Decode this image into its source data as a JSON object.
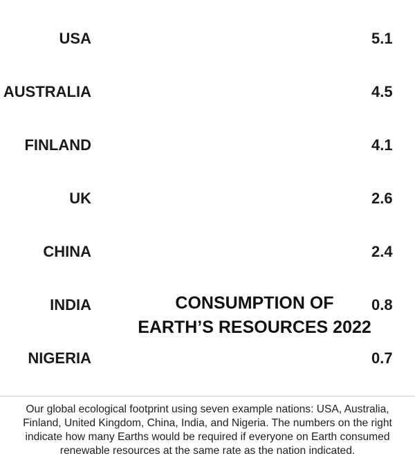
{
  "chart_data": {
    "type": "bar",
    "title_lines": [
      "CONSUMPTION OF",
      "EARTH’S RESOURCES 2022"
    ],
    "categories": [
      "USA",
      "AUSTRALIA",
      "FINLAND",
      "UK",
      "CHINA",
      "INDIA",
      "NIGERIA"
    ],
    "values": [
      5.1,
      4.5,
      4.1,
      2.6,
      2.4,
      0.8,
      0.7
    ],
    "value_labels": [
      "5.1",
      "4.5",
      "4.1",
      "2.6",
      "2.4",
      "0.8",
      "0.7"
    ],
    "unit_icon": "earth-globe-icon",
    "icon_color": "#1f6fbf"
  },
  "caption": "Our global ecological footprint using seven example nations: USA, Australia, Finland, United Kingdom, China, India, and Nigeria. The numbers on the right indicate how many Earths would be required if everyone on Earth consumed renewable resources at the same rate as the nation indicated."
}
